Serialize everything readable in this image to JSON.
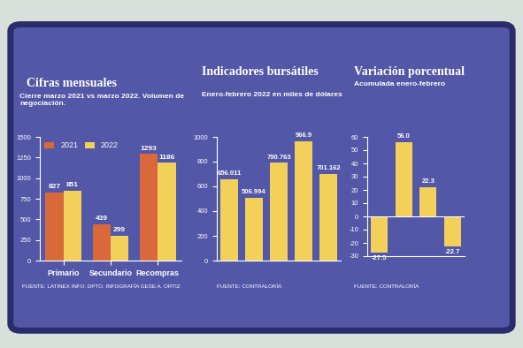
{
  "chart_data": [
    {
      "type": "bar",
      "title": "Cifras mensuales",
      "subtitle": "Cierre marzo 2021 vs marzo 2022. Volumen de negociación.",
      "source": "FUENTE: LATINEX INFO: DPTO. INFOGRAFÍA GESE A. ORTIZ",
      "categories": [
        "Primario",
        "Secundario",
        "Recompras"
      ],
      "series": [
        {
          "name": "2021",
          "color": "#d9683a",
          "values": [
            827,
            439,
            1293
          ]
        },
        {
          "name": "2022",
          "color": "#f3d05a",
          "values": [
            851,
            299,
            1186
          ]
        }
      ],
      "ylim": [
        0,
        1500
      ],
      "yticks": [
        0,
        250,
        500,
        750,
        1000,
        1250,
        1500
      ],
      "legend": "upper left",
      "data_labels": true
    },
    {
      "type": "bar",
      "title": "Indicadores bursátiles",
      "subtitle": "Enero-febrero 2022 en miles de dólares",
      "source": "FUENTE: CONTRALORÍA",
      "categories": [
        null,
        null,
        null,
        null,
        null
      ],
      "values": [
        656.011,
        506.994,
        790.763,
        966.9,
        701.162
      ],
      "color": "#f3d05a",
      "ylim": [
        0,
        1000
      ],
      "yticks": [
        0,
        200,
        400,
        600,
        800,
        1000
      ],
      "data_labels": true,
      "tick_labels": "y"
    },
    {
      "type": "bar",
      "title": "Variación porcentual",
      "subtitle": "Acumulada enero-febrero",
      "source": "FUENTE: CONTRALORÍA",
      "categories": [
        null,
        null,
        null,
        null
      ],
      "values": [
        -27.5,
        56.0,
        22.3,
        -22.7
      ],
      "color": "#f3d05a",
      "ylim": [
        -30,
        60
      ],
      "yticks": [
        -30,
        -20,
        -10,
        0,
        10,
        20,
        30,
        40,
        50,
        60
      ],
      "data_labels": true,
      "tick_labels": "y"
    }
  ]
}
